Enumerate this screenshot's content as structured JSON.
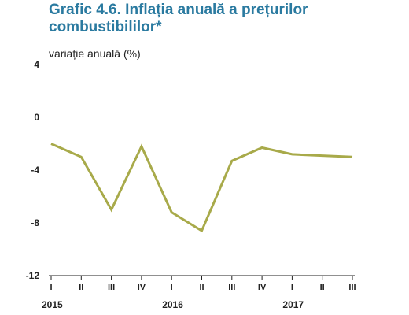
{
  "title_line1": "Grafic 4.6. Inflația anuală a prețurilor",
  "title_line2": "combustibililor*",
  "unit_label": "variație anuală (%)",
  "colors": {
    "title": "#2a7aa0",
    "line": "#a8aa4a",
    "axis": "#222222"
  },
  "chart_data": {
    "type": "line",
    "title": "Grafic 4.6. Inflația anuală a prețurilor combustibililor*",
    "ylabel": "variație anuală (%)",
    "ylim": [
      -12,
      4
    ],
    "yticks": [
      4,
      0,
      -4,
      -8,
      -12
    ],
    "grid": false,
    "categories": [
      "I",
      "II",
      "III",
      "IV",
      "I",
      "II",
      "III",
      "IV",
      "I",
      "II",
      "III"
    ],
    "years": [
      {
        "label": "2015",
        "index": 0
      },
      {
        "label": "2016",
        "index": 4
      },
      {
        "label": "2017",
        "index": 8
      }
    ],
    "series": [
      {
        "values": [
          -2.0,
          -3.0,
          -7.0,
          -2.2,
          -7.2,
          -8.6,
          -3.3,
          -2.3,
          -2.8,
          -2.9,
          -3.0
        ]
      }
    ]
  }
}
